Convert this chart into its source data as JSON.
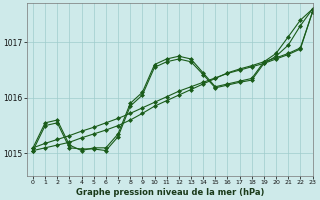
{
  "xlabel": "Graphe pression niveau de la mer (hPa)",
  "xlim": [
    -0.5,
    23
  ],
  "ylim": [
    1014.6,
    1017.7
  ],
  "yticks": [
    1015,
    1016,
    1017
  ],
  "xticks": [
    0,
    1,
    2,
    3,
    4,
    5,
    6,
    7,
    8,
    9,
    10,
    11,
    12,
    13,
    14,
    15,
    16,
    17,
    18,
    19,
    20,
    21,
    22,
    23
  ],
  "background_color": "#ceeaea",
  "grid_color": "#a0cccc",
  "line_color": "#1a5c1a",
  "lines": [
    {
      "x": [
        0,
        1,
        2,
        3,
        4,
        5,
        6,
        7,
        8,
        9,
        10,
        11,
        12,
        13,
        14,
        15,
        16,
        17,
        18,
        19,
        20,
        21,
        22,
        23
      ],
      "y": [
        1015.05,
        1015.1,
        1015.15,
        1015.2,
        1015.28,
        1015.35,
        1015.42,
        1015.5,
        1015.6,
        1015.72,
        1015.85,
        1015.95,
        1016.05,
        1016.15,
        1016.25,
        1016.35,
        1016.45,
        1016.52,
        1016.58,
        1016.65,
        1016.72,
        1016.8,
        1016.9,
        1017.55
      ],
      "marker": "D",
      "markersize": 2.0,
      "linewidth": 0.8
    },
    {
      "x": [
        0,
        1,
        2,
        3,
        4,
        5,
        6,
        7,
        8,
        9,
        10,
        11,
        12,
        13,
        14,
        15,
        16,
        17,
        18,
        19,
        20,
        21,
        22,
        23
      ],
      "y": [
        1015.1,
        1015.18,
        1015.25,
        1015.32,
        1015.4,
        1015.47,
        1015.55,
        1015.63,
        1015.72,
        1015.82,
        1015.92,
        1016.02,
        1016.12,
        1016.2,
        1016.28,
        1016.36,
        1016.44,
        1016.5,
        1016.56,
        1016.62,
        1016.7,
        1016.78,
        1016.88,
        1017.55
      ],
      "marker": "D",
      "markersize": 2.0,
      "linewidth": 0.8
    },
    {
      "x": [
        0,
        1,
        2,
        3,
        4,
        5,
        6,
        7,
        8,
        9,
        10,
        11,
        12,
        13,
        14,
        15,
        16,
        17,
        18,
        19,
        20,
        21,
        22,
        23
      ],
      "y": [
        1015.1,
        1015.55,
        1015.6,
        1015.15,
        1015.05,
        1015.1,
        1015.1,
        1015.35,
        1015.9,
        1016.1,
        1016.6,
        1016.7,
        1016.75,
        1016.7,
        1016.45,
        1016.2,
        1016.25,
        1016.3,
        1016.35,
        1016.65,
        1016.8,
        1017.1,
        1017.4,
        1017.6
      ],
      "marker": "D",
      "markersize": 2.0,
      "linewidth": 0.8
    },
    {
      "x": [
        0,
        1,
        2,
        3,
        4,
        5,
        6,
        7,
        8,
        9,
        10,
        11,
        12,
        13,
        14,
        15,
        16,
        17,
        18,
        19,
        20,
        21,
        22,
        23
      ],
      "y": [
        1015.05,
        1015.5,
        1015.55,
        1015.1,
        1015.08,
        1015.08,
        1015.05,
        1015.3,
        1015.85,
        1016.05,
        1016.55,
        1016.65,
        1016.7,
        1016.65,
        1016.42,
        1016.18,
        1016.23,
        1016.28,
        1016.32,
        1016.62,
        1016.75,
        1016.95,
        1017.3,
        1017.6
      ],
      "marker": "D",
      "markersize": 2.0,
      "linewidth": 0.8
    }
  ]
}
